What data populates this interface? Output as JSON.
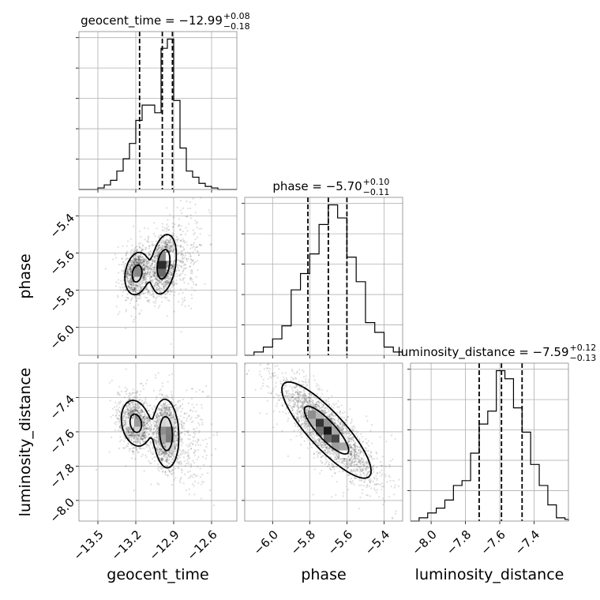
{
  "chart_data": {
    "type": "corner",
    "parameters": [
      "geocent_time",
      "phase",
      "luminosity_distance"
    ],
    "ranges": {
      "geocent_time": [
        -13.65,
        -12.4
      ],
      "phase": [
        -6.15,
        -5.3
      ],
      "luminosity_distance": [
        -8.12,
        -7.2
      ]
    },
    "ticks": {
      "geocent_time": [
        -13.5,
        -13.2,
        -12.9,
        -12.6
      ],
      "phase": [
        -6.0,
        -5.8,
        -5.6,
        -5.4
      ],
      "luminosity_distance": [
        -8.0,
        -7.8,
        -7.6,
        -7.4
      ]
    },
    "tick_labels": {
      "geocent_time": [
        "−13.5",
        "−13.2",
        "−12.9",
        "−12.6"
      ],
      "phase": [
        "−6.0",
        "−5.8",
        "−5.6",
        "−5.4"
      ],
      "luminosity_distance": [
        "−8.0",
        "−7.8",
        "−7.6",
        "−7.4"
      ]
    },
    "titles": {
      "geocent_time": {
        "main": "geocent_time = −12.99",
        "plus": "+0.08",
        "minus": "−0.18"
      },
      "phase": {
        "main": "phase = −5.70",
        "plus": "+0.10",
        "minus": "−0.11"
      },
      "luminosity_distance": {
        "main": "luminosity_distance = −7.59",
        "plus": "+0.12",
        "minus": "−0.13"
      }
    },
    "quantiles": {
      "geocent_time": [
        -13.17,
        -12.99,
        -12.91
      ],
      "phase": [
        -5.81,
        -5.7,
        -5.6
      ],
      "luminosity_distance": [
        -7.72,
        -7.59,
        -7.47
      ]
    },
    "histograms": {
      "geocent_time": {
        "edges": [
          -13.65,
          -13.6,
          -13.55,
          -13.5,
          -13.45,
          -13.4,
          -13.35,
          -13.3,
          -13.25,
          -13.2,
          -13.15,
          -13.1,
          -13.05,
          -13.0,
          -12.95,
          -12.9,
          -12.85,
          -12.8,
          -12.75,
          -12.7,
          -12.65,
          -12.6,
          -12.55,
          -12.5,
          -12.45,
          -12.4
        ],
        "counts": [
          0,
          0,
          0,
          0.01,
          0.03,
          0.06,
          0.12,
          0.2,
          0.3,
          0.45,
          0.55,
          0.55,
          0.5,
          0.92,
          0.98,
          0.58,
          0.27,
          0.12,
          0.08,
          0.04,
          0.02,
          0.01,
          0,
          0,
          0
        ]
      },
      "phase": {
        "edges": [
          -6.15,
          -6.1,
          -6.05,
          -6.0,
          -5.95,
          -5.9,
          -5.85,
          -5.8,
          -5.75,
          -5.7,
          -5.65,
          -5.6,
          -5.55,
          -5.5,
          -5.45,
          -5.4,
          -5.35,
          -5.3
        ],
        "counts": [
          0,
          0.02,
          0.05,
          0.1,
          0.18,
          0.4,
          0.5,
          0.62,
          0.8,
          0.92,
          0.84,
          0.6,
          0.45,
          0.2,
          0.14,
          0.05,
          0.02
        ]
      },
      "luminosity_distance": {
        "edges": [
          -8.12,
          -8.07,
          -8.02,
          -7.97,
          -7.92,
          -7.87,
          -7.82,
          -7.77,
          -7.72,
          -7.67,
          -7.62,
          -7.57,
          -7.52,
          -7.47,
          -7.42,
          -7.37,
          -7.32,
          -7.27,
          -7.22,
          -7.2
        ],
        "counts": [
          0,
          0.02,
          0.05,
          0.08,
          0.13,
          0.22,
          0.25,
          0.42,
          0.6,
          0.68,
          0.93,
          0.88,
          0.7,
          0.55,
          0.35,
          0.22,
          0.1,
          0.02,
          0.01
        ]
      }
    },
    "density_modes": {
      "phase_vs_geocent_time": [
        {
          "x": -13.19,
          "y": -5.71,
          "sx": 0.05,
          "sy": 0.06,
          "rho": 0.2,
          "w": 0.45
        },
        {
          "x": -12.98,
          "y": -5.66,
          "sx": 0.05,
          "sy": 0.08,
          "rho": 0.3,
          "w": 0.55
        }
      ],
      "luminosity_distance_vs_geocent_time": [
        {
          "x": -13.2,
          "y": -7.55,
          "sx": 0.06,
          "sy": 0.07,
          "rho": -0.2,
          "w": 0.45
        },
        {
          "x": -12.96,
          "y": -7.61,
          "sx": 0.05,
          "sy": 0.1,
          "rho": -0.1,
          "w": 0.55
        }
      ],
      "luminosity_distance_vs_phase": [
        {
          "x": -5.71,
          "y": -7.59,
          "sx": 0.12,
          "sy": 0.14,
          "rho": -0.85,
          "w": 1.0
        }
      ]
    },
    "contour_levels": [
      0.393,
      0.865
    ],
    "grid": true
  }
}
